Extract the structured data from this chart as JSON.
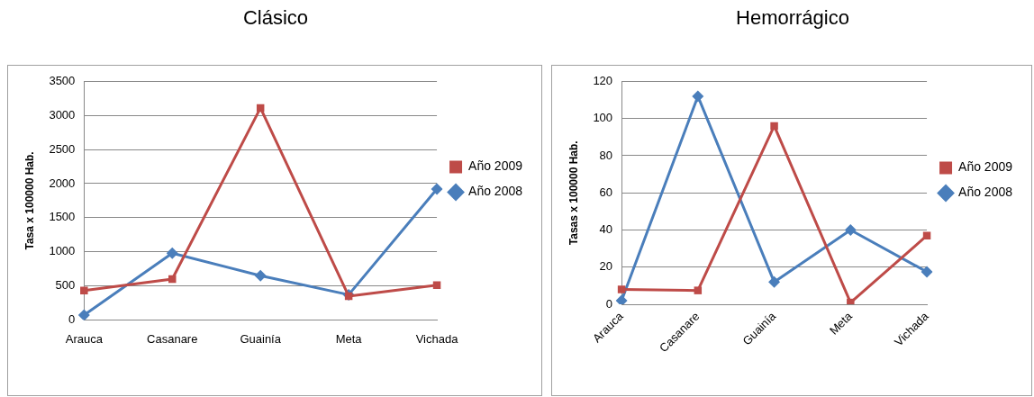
{
  "chart_data": [
    {
      "type": "line",
      "title": "Clásico",
      "ylabel": "Tasa x 100000 Hab.",
      "categories": [
        "Arauca",
        "Casanare",
        "Guainía",
        "Meta",
        "Vichada"
      ],
      "ylim": [
        0,
        3500
      ],
      "yticks": [
        0,
        500,
        1000,
        1500,
        2000,
        2500,
        3000,
        3500
      ],
      "grid": "y",
      "legend": "right",
      "line_style": "solid",
      "series": [
        {
          "name": "Año 2008",
          "color": "#4a7ebb",
          "marker": "diamond",
          "values": [
            70,
            980,
            650,
            370,
            1920
          ]
        },
        {
          "name": "Año 2009",
          "color": "#be4b48",
          "marker": "square",
          "values": [
            430,
            600,
            3110,
            350,
            510
          ]
        }
      ]
    },
    {
      "type": "line",
      "title": "Hemorrágico",
      "ylabel": "Tasas x 100000 Hab.",
      "categories": [
        "Arauca",
        "Casanare",
        "Guainía",
        "Meta",
        "Vichada"
      ],
      "ylim": [
        0,
        120
      ],
      "yticks": [
        0,
        20,
        40,
        60,
        80,
        100,
        120
      ],
      "grid": "y",
      "legend": "right",
      "line_style": "solid",
      "series": [
        {
          "name": "Año 2008",
          "color": "#4a7ebb",
          "marker": "diamond",
          "values": [
            2,
            112,
            12,
            40,
            17.5
          ]
        },
        {
          "name": "Año 2009",
          "color": "#be4b48",
          "marker": "square",
          "values": [
            8,
            7.5,
            96,
            1,
            37
          ]
        }
      ]
    }
  ]
}
